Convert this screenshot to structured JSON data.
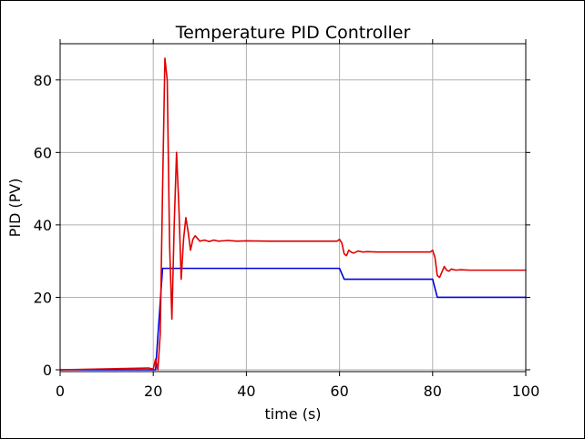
{
  "chart_data": {
    "type": "line",
    "title": "Temperature PID Controller",
    "xlabel": "time (s)",
    "ylabel": "PID (PV)",
    "xlim": [
      0,
      100
    ],
    "ylim": [
      -0.5,
      90
    ],
    "xticks": [
      0,
      20,
      40,
      60,
      80,
      100
    ],
    "yticks": [
      0,
      20,
      40,
      60,
      80
    ],
    "grid": true,
    "colors": {
      "pv": "#e00000",
      "sp": "#0000e0",
      "grid": "#b0b0b0"
    },
    "series": [
      {
        "key": "sp",
        "x": [
          0,
          20.5,
          22,
          60,
          61,
          80,
          81,
          100
        ],
        "y": [
          0,
          0,
          28,
          28,
          25,
          25,
          20,
          20
        ]
      },
      {
        "key": "pv",
        "x": [
          0,
          19,
          20,
          20.5,
          21,
          21.5,
          22,
          22.5,
          23,
          23.5,
          24,
          24.5,
          25,
          25.5,
          26,
          26.5,
          27,
          27.5,
          28,
          28.5,
          29,
          30,
          31,
          32,
          33,
          34,
          36,
          38,
          40,
          45,
          50,
          55,
          59.5,
          60,
          60.5,
          61,
          61.5,
          62,
          62.5,
          63,
          64,
          65,
          66,
          68,
          70,
          75,
          79.5,
          80,
          80.5,
          81,
          81.5,
          82,
          82.5,
          83,
          83.5,
          84,
          85,
          86,
          88,
          90,
          95,
          100
        ],
        "y": [
          0,
          0.5,
          0.2,
          3,
          0,
          10,
          50,
          86,
          80,
          35,
          14,
          40,
          60,
          45,
          25,
          36,
          42,
          38,
          33,
          36,
          37,
          35.5,
          35.8,
          35.4,
          35.8,
          35.5,
          35.7,
          35.5,
          35.6,
          35.5,
          35.5,
          35.5,
          35.5,
          36,
          35,
          32,
          31.5,
          33,
          32.5,
          32.2,
          32.8,
          32.5,
          32.6,
          32.5,
          32.5,
          32.5,
          32.5,
          33,
          31,
          26,
          25.5,
          27,
          28.5,
          27.5,
          27.2,
          27.8,
          27.5,
          27.6,
          27.5,
          27.5,
          27.5,
          27.5
        ]
      }
    ]
  }
}
